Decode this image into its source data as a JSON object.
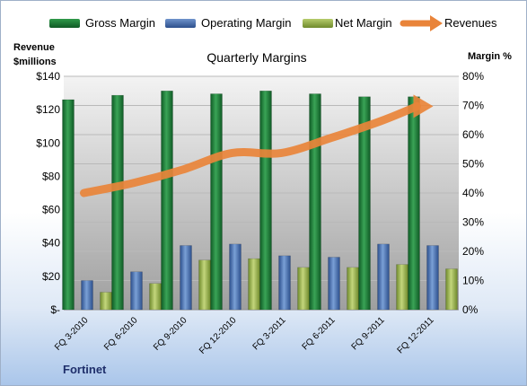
{
  "legend": {
    "gross": "Gross Margin",
    "operating": "Operating Margin",
    "net": "Net Margin",
    "revenues": "Revenues"
  },
  "left_axis_title_line1": "Revenue",
  "left_axis_title_line2": "$millions",
  "right_axis_title": "Margin %",
  "footer": "Fortinet",
  "colors": {
    "gross": "#1a7a35",
    "operating": "#4a72b0",
    "net": "#8fa84a",
    "revenues": "#e9843a"
  },
  "chart_data": {
    "type": "bar",
    "title": "Quarterly Margins",
    "categories": [
      "FQ 3-2010",
      "FQ 6-2010",
      "FQ 9-2010",
      "FQ 12-2010",
      "FQ 3-2011",
      "FQ 6-2011",
      "FQ 9-2011",
      "FQ 12-2011"
    ],
    "series": [
      {
        "name": "Gross Margin",
        "axis": "right",
        "values": [
          72,
          73.5,
          75,
          74,
          75,
          74,
          73,
          73
        ]
      },
      {
        "name": "Operating Margin",
        "axis": "right",
        "values": [
          10,
          13,
          22,
          22.5,
          18.5,
          18,
          22.5,
          22
        ]
      },
      {
        "name": "Net Margin",
        "axis": "right",
        "values": [
          6,
          9,
          17,
          17.5,
          14.5,
          14.5,
          15.5,
          14
        ]
      },
      {
        "name": "Revenues",
        "axis": "left",
        "type": "line",
        "values": [
          70,
          76,
          84,
          94,
          94,
          103,
          113,
          122
        ]
      }
    ],
    "ylabel": "Revenue $millions",
    "ylim": [
      0,
      140
    ],
    "y_ticks": [
      "$-",
      "$20",
      "$40",
      "$60",
      "$80",
      "$100",
      "$120",
      "$140"
    ],
    "y2label": "Margin %",
    "y2lim": [
      0,
      80
    ],
    "y2_ticks": [
      "0%",
      "10%",
      "20%",
      "30%",
      "40%",
      "50%",
      "60%",
      "70%",
      "80%"
    ],
    "grid": true,
    "legend_position": "top"
  }
}
